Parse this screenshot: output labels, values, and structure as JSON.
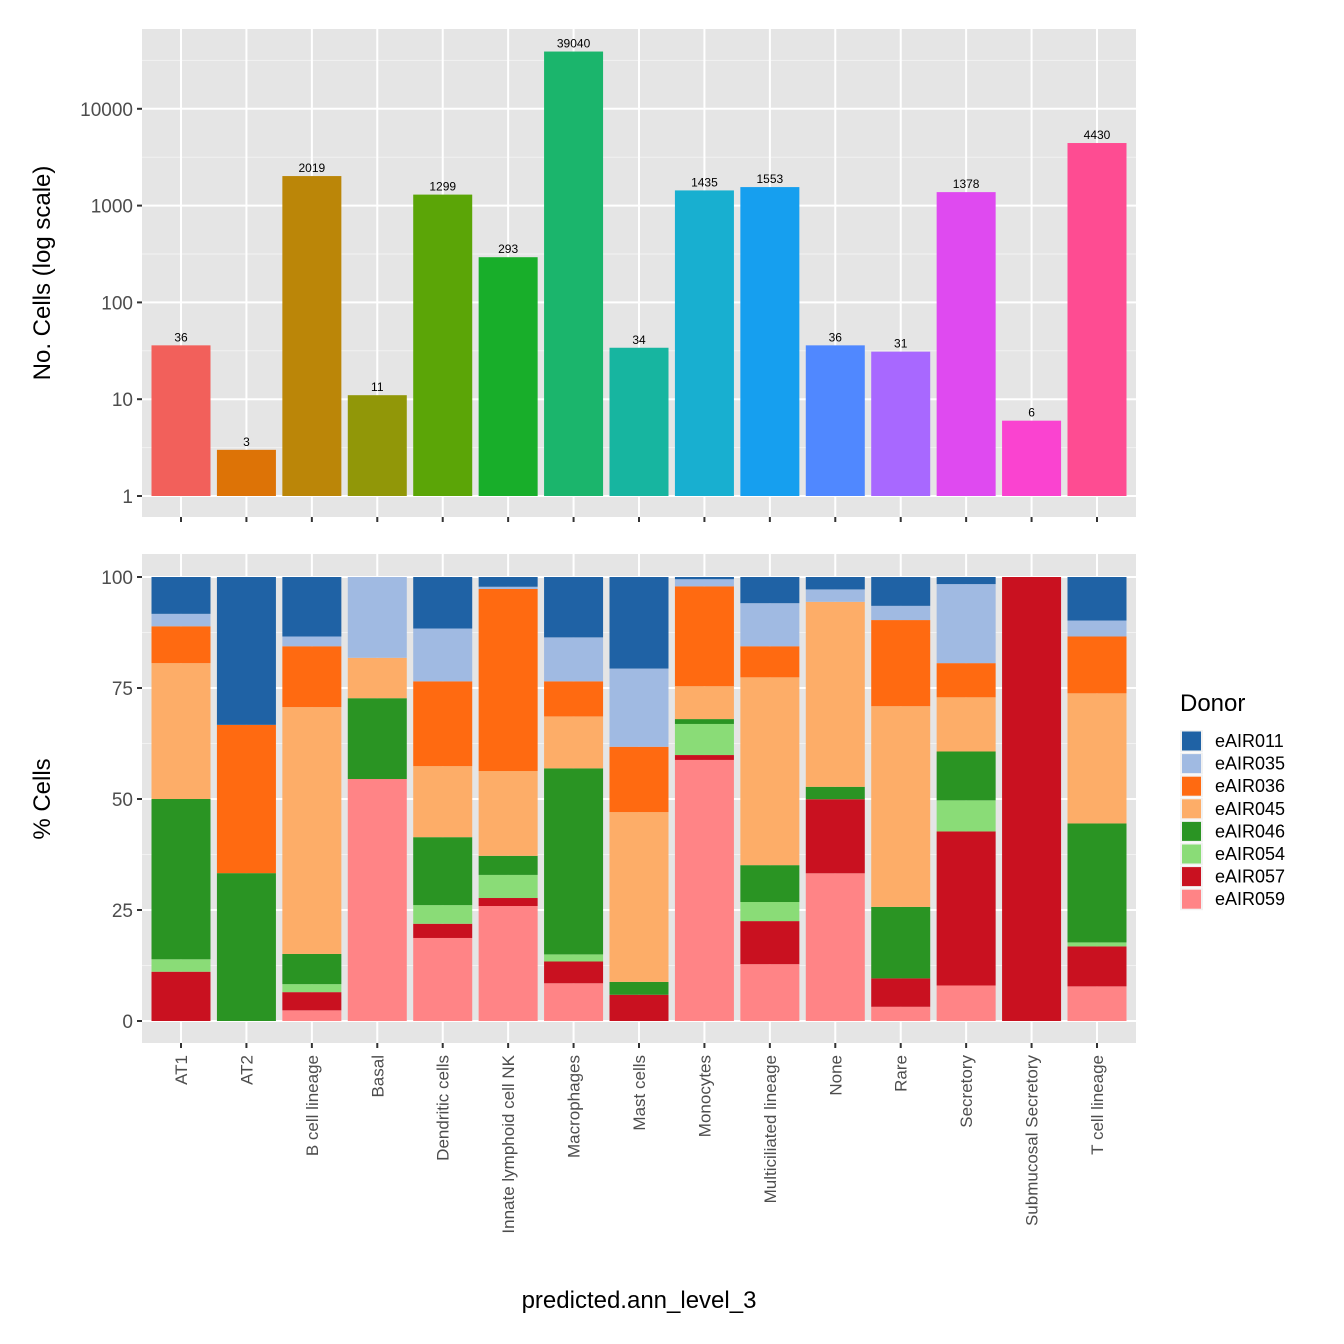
{
  "chart_data": [
    {
      "type": "bar",
      "panel": "top",
      "scale": "log10",
      "title": "",
      "xlabel": "",
      "ylabel": "No. Cells (log scale)",
      "ylim": [
        1,
        50000
      ],
      "yticks": [
        1,
        10,
        100,
        1000,
        10000
      ],
      "ytick_labels": [
        "1",
        "10",
        "100",
        "1000",
        "10000"
      ],
      "grid": true,
      "categories": [
        "AT1",
        "AT2",
        "B cell lineage",
        "Basal",
        "Dendritic cells",
        "Innate lymphoid cell NK",
        "Macrophages",
        "Mast cells",
        "Monocytes",
        "Multiciliated lineage",
        "None",
        "Rare",
        "Secretory",
        "Submucosal Secretory",
        "T cell lineage"
      ],
      "values": [
        36,
        3,
        2019,
        11,
        1299,
        293,
        39040,
        34,
        1435,
        1553,
        36,
        31,
        1378,
        6,
        4430
      ],
      "data_labels": [
        "36",
        "3",
        "2019",
        "11",
        "1299",
        "293",
        "39040",
        "34",
        "1435",
        "1553",
        "36",
        "31",
        "1378",
        "6",
        "4430"
      ],
      "colors": [
        "#F8766D",
        "#E58700",
        "#C99800",
        "#A3A500",
        "#6BB100",
        "#00BA38",
        "#00BF7D",
        "#00C0AF",
        "#00BCD8",
        "#00B0F6",
        "#619CFF",
        "#B983FF",
        "#E76BF3",
        "#FD61D1",
        "#FF67A4"
      ],
      "display_colors": [
        "#F2605B",
        "#DD7306",
        "#BB8608",
        "#919708",
        "#5BA507",
        "#18AE2A",
        "#1BB56C",
        "#17B5A0",
        "#18AFD0",
        "#169FEF",
        "#5088FF",
        "#A868FF",
        "#DF4AF0",
        "#FA43D0",
        "#FE4C92"
      ]
    },
    {
      "type": "bar",
      "stacked": true,
      "panel": "bottom",
      "title": "",
      "xlabel": "predicted.ann_level_3",
      "ylabel": "% Cells",
      "ylim": [
        0,
        100
      ],
      "yticks": [
        0,
        25,
        50,
        75,
        100
      ],
      "ytick_labels": [
        "0",
        "25",
        "50",
        "75",
        "100"
      ],
      "grid": true,
      "legend": {
        "title": "Donor",
        "position": "right"
      },
      "categories": [
        "AT1",
        "AT2",
        "B cell lineage",
        "Basal",
        "Dendritic cells",
        "Innate lymphoid cell NK",
        "Macrophages",
        "Mast cells",
        "Monocytes",
        "Multiciliated lineage",
        "None",
        "Rare",
        "Secretory",
        "Submucosal Secretory",
        "T cell lineage"
      ],
      "series": [
        {
          "name": "eAIR011",
          "color": "#1F62A5",
          "values": [
            8.3,
            33.3,
            13.4,
            0,
            11.6,
            2.2,
            13.6,
            20.6,
            0.5,
            5.9,
            2.8,
            6.5,
            1.6,
            0,
            9.8
          ]
        },
        {
          "name": "eAIR035",
          "color": "#A0BAE2",
          "values": [
            2.8,
            0,
            2.2,
            18.2,
            11.9,
            0.5,
            9.9,
            17.6,
            1.6,
            9.7,
            2.8,
            3.2,
            17.8,
            0,
            3.6
          ]
        },
        {
          "name": "eAIR036",
          "color": "#FF6A11",
          "values": [
            8.3,
            33.4,
            13.7,
            0,
            19.1,
            41.0,
            7.9,
            14.7,
            22.5,
            7.0,
            0,
            19.4,
            7.7,
            0,
            12.8
          ]
        },
        {
          "name": "eAIR045",
          "color": "#FDAD68",
          "values": [
            30.6,
            0,
            55.6,
            9.1,
            16.0,
            19.1,
            11.7,
            38.2,
            7.4,
            42.3,
            41.7,
            45.2,
            12.2,
            0,
            29.3
          ]
        },
        {
          "name": "eAIR046",
          "color": "#2A9423",
          "values": [
            36.1,
            33.3,
            6.8,
            18.2,
            15.3,
            4.3,
            41.9,
            2.9,
            1.1,
            8.3,
            2.8,
            16.1,
            11.0,
            0,
            26.8
          ]
        },
        {
          "name": "eAIR054",
          "color": "#8ADC77",
          "values": [
            2.8,
            0,
            1.8,
            0,
            4.2,
            5.2,
            1.6,
            0,
            7.0,
            4.3,
            0,
            0,
            7.0,
            0,
            0.9
          ]
        },
        {
          "name": "eAIR057",
          "color": "#C91120",
          "values": [
            11.1,
            0,
            4.1,
            0,
            3.2,
            1.8,
            4.9,
            5.9,
            1.1,
            9.7,
            16.7,
            6.4,
            34.7,
            100,
            9.0
          ]
        },
        {
          "name": "eAIR059",
          "color": "#FF8486",
          "values": [
            0,
            0,
            2.4,
            54.5,
            18.7,
            25.9,
            8.5,
            0,
            58.8,
            12.8,
            33.3,
            3.2,
            8.0,
            0,
            7.8
          ]
        }
      ]
    }
  ]
}
